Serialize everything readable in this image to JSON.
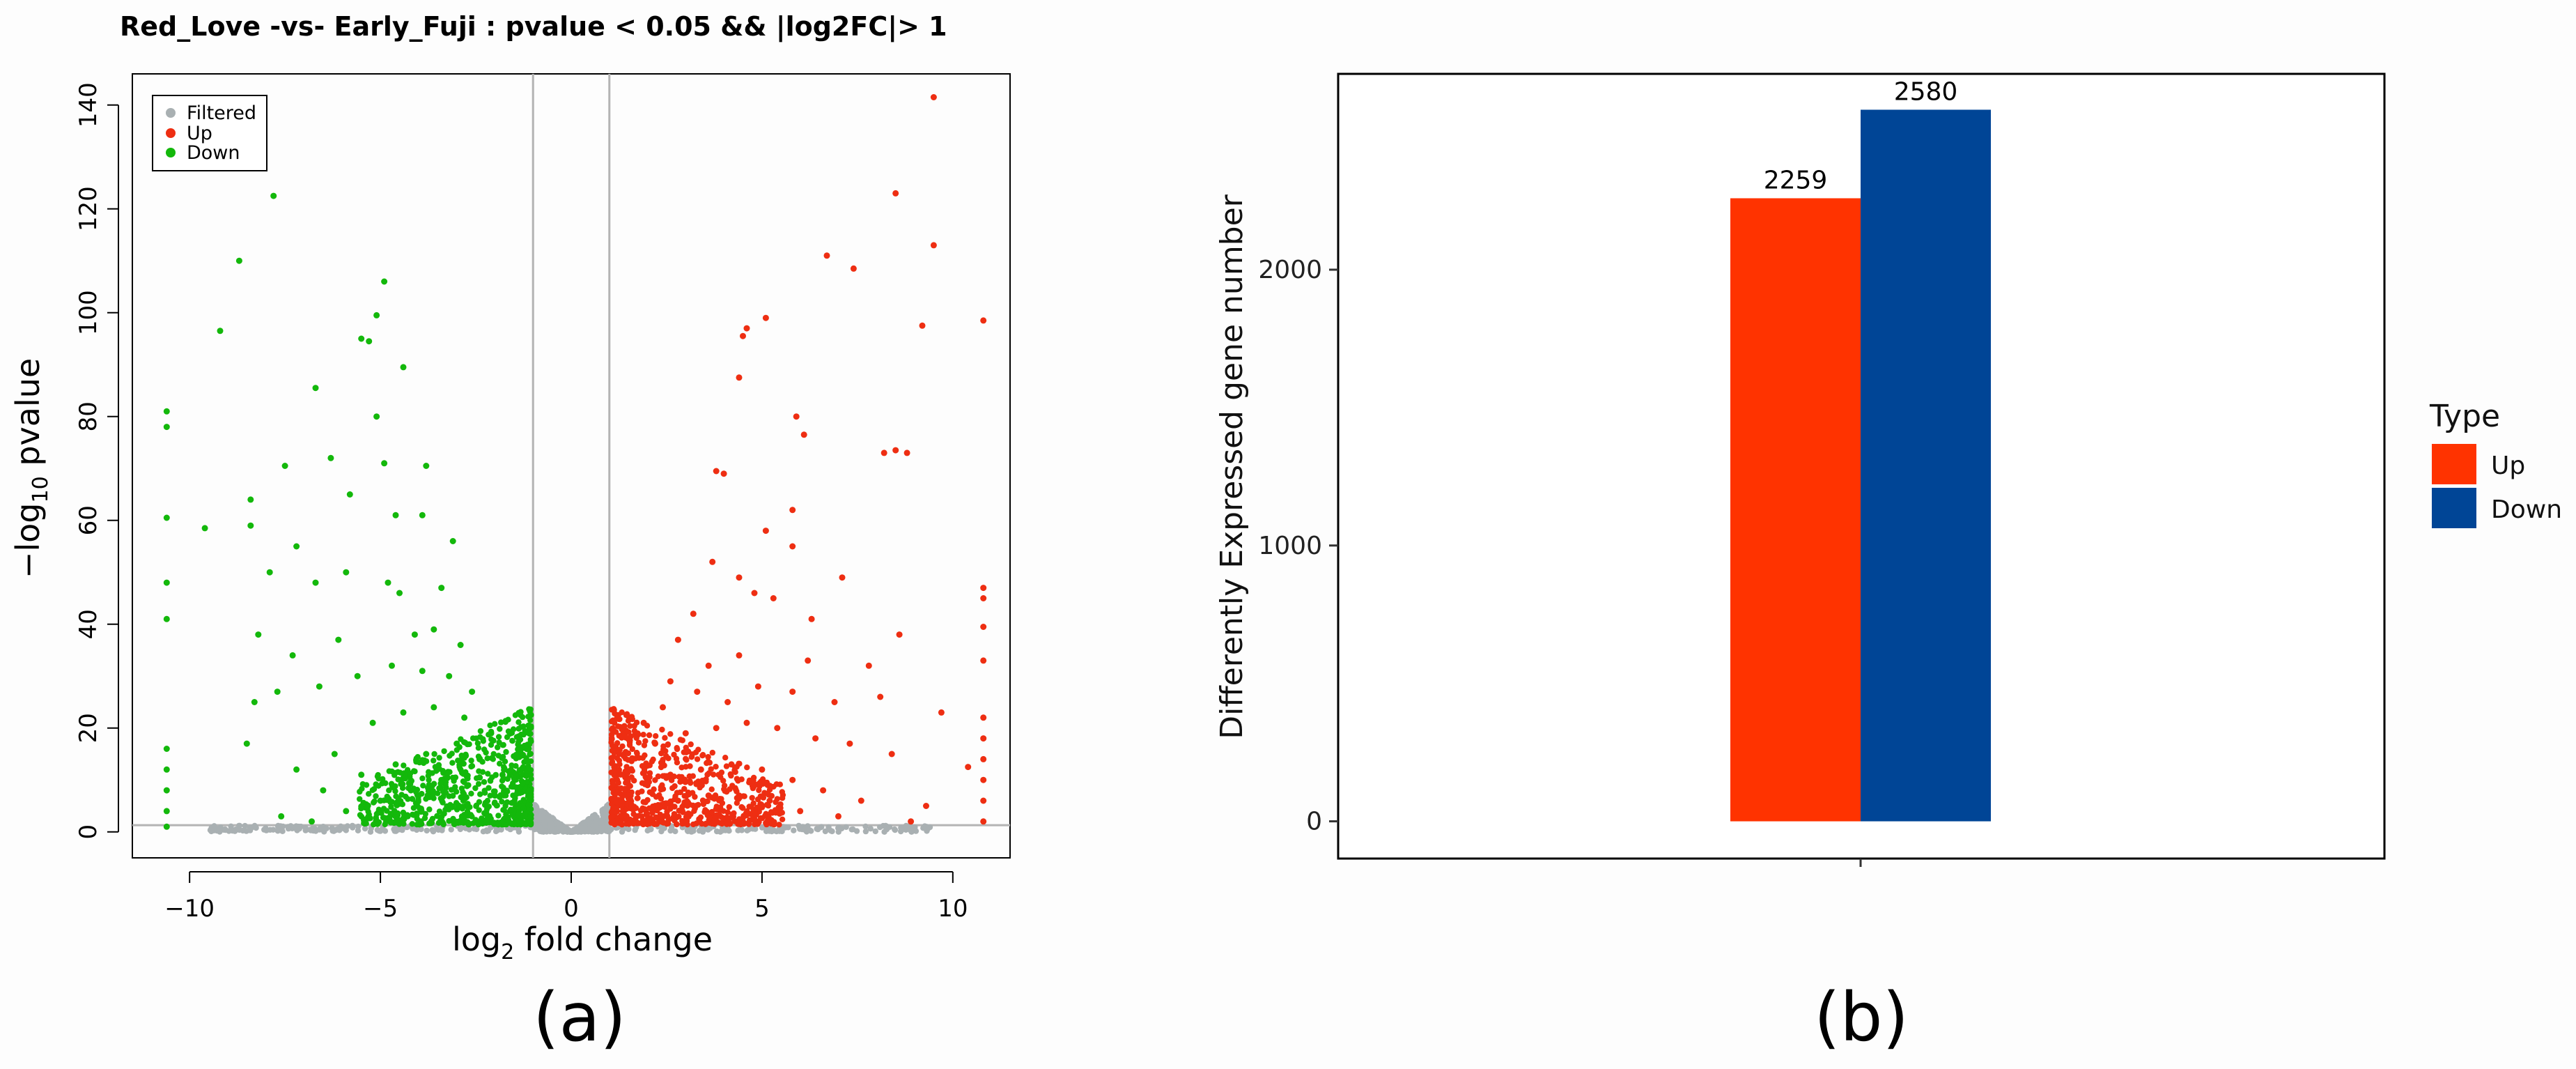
{
  "panels": {
    "a_label": "(a)",
    "b_label": "(b)"
  },
  "chart_data": [
    {
      "type": "scatter",
      "title": "Red_Love -vs- Early_Fuji : pvalue < 0.05 && |log2FC|> 1",
      "xlabel": "log2 fold change",
      "ylabel": "-log10 pvalue",
      "xlim": [
        -11.5,
        11.5
      ],
      "ylim": [
        -5,
        146
      ],
      "x_ticks": [
        -10,
        -5,
        0,
        5,
        10
      ],
      "y_ticks": [
        0,
        20,
        40,
        60,
        80,
        100,
        120,
        140
      ],
      "thresholds": {
        "log2fc": [
          -1,
          1
        ],
        "pvalue_line": 1.3
      },
      "legend": {
        "placement": "top-left",
        "entries": [
          "Filtered",
          "Up",
          "Down"
        ]
      },
      "colors": {
        "Filtered": "#a9b0b2",
        "Up": "#ee2e12",
        "Down": "#13b80b"
      },
      "series": [
        {
          "name": "Down",
          "points": [
            [
              -7.8,
              122.5
            ],
            [
              -8.7,
              110
            ],
            [
              -4.9,
              106
            ],
            [
              -5.1,
              99.5
            ],
            [
              -9.2,
              96.5
            ],
            [
              -5.5,
              95
            ],
            [
              -5.3,
              94.5
            ],
            [
              -4.4,
              89.5
            ],
            [
              -6.7,
              85.5
            ],
            [
              -5.1,
              80
            ],
            [
              -6.3,
              72
            ],
            [
              -4.9,
              71
            ],
            [
              -7.5,
              70.5
            ],
            [
              -3.8,
              70.5
            ],
            [
              -8.4,
              64
            ],
            [
              -5.8,
              65
            ],
            [
              -4.6,
              61
            ],
            [
              -3.9,
              61
            ],
            [
              -9.6,
              58.5
            ],
            [
              -8.4,
              59
            ],
            [
              -7.2,
              55
            ],
            [
              -3.1,
              56
            ],
            [
              -7.9,
              50
            ],
            [
              -6.7,
              48
            ],
            [
              -5.9,
              50
            ],
            [
              -4.8,
              48
            ],
            [
              -4.5,
              46
            ],
            [
              -3.4,
              47
            ],
            [
              -10.6,
              81
            ],
            [
              -10.6,
              78
            ],
            [
              -10.6,
              60.5
            ],
            [
              -10.6,
              48
            ],
            [
              -10.6,
              41
            ],
            [
              -8.2,
              38
            ],
            [
              -7.3,
              34
            ],
            [
              -6.1,
              37
            ],
            [
              -4.1,
              38
            ],
            [
              -3.6,
              39
            ],
            [
              -2.9,
              36
            ],
            [
              -8.3,
              25
            ],
            [
              -7.7,
              27
            ],
            [
              -6.6,
              28
            ],
            [
              -5.6,
              30
            ],
            [
              -4.7,
              32
            ],
            [
              -3.9,
              31
            ],
            [
              -3.2,
              30
            ],
            [
              -2.6,
              27
            ],
            [
              -8.5,
              17
            ],
            [
              -7.2,
              12
            ],
            [
              -6.2,
              15
            ],
            [
              -5.2,
              21
            ],
            [
              -4.4,
              23
            ],
            [
              -3.6,
              24
            ],
            [
              -2.8,
              22
            ],
            [
              -2.1,
              19
            ],
            [
              -7.6,
              3
            ],
            [
              -6.5,
              8
            ],
            [
              -5.5,
              11
            ],
            [
              -4.6,
              13
            ],
            [
              -3.8,
              15
            ],
            [
              -3.0,
              17
            ],
            [
              -2.4,
              14
            ],
            [
              -1.8,
              11
            ],
            [
              -1.4,
              8
            ],
            [
              -1.2,
              5
            ],
            [
              -6.8,
              2
            ],
            [
              -5.9,
              4
            ],
            [
              -5.0,
              6
            ],
            [
              -4.2,
              8
            ],
            [
              -3.4,
              10
            ],
            [
              -2.7,
              9
            ],
            [
              -2.0,
              7
            ],
            [
              -1.6,
              4
            ],
            [
              -1.3,
              2
            ],
            [
              -10.6,
              16
            ],
            [
              -10.6,
              12
            ],
            [
              -10.6,
              8
            ],
            [
              -10.6,
              4
            ],
            [
              -10.6,
              1
            ]
          ]
        },
        {
          "name": "Up",
          "points": [
            [
              9.5,
              141.5
            ],
            [
              8.5,
              123
            ],
            [
              9.5,
              113
            ],
            [
              6.7,
              111
            ],
            [
              7.4,
              108.5
            ],
            [
              10.8,
              98.5
            ],
            [
              5.1,
              99
            ],
            [
              4.6,
              97
            ],
            [
              9.2,
              97.5
            ],
            [
              4.5,
              95.5
            ],
            [
              4.4,
              87.5
            ],
            [
              5.9,
              80
            ],
            [
              6.1,
              76.5
            ],
            [
              8.5,
              73.5
            ],
            [
              8.2,
              73
            ],
            [
              8.8,
              73
            ],
            [
              4.0,
              69
            ],
            [
              3.8,
              69.5
            ],
            [
              5.8,
              62
            ],
            [
              5.1,
              58
            ],
            [
              5.8,
              55
            ],
            [
              7.1,
              49
            ],
            [
              3.7,
              52
            ],
            [
              4.4,
              49
            ],
            [
              4.8,
              46
            ],
            [
              5.3,
              45
            ],
            [
              10.8,
              47
            ],
            [
              10.8,
              45
            ],
            [
              10.8,
              39.5
            ],
            [
              10.8,
              33
            ],
            [
              8.6,
              38
            ],
            [
              6.3,
              41
            ],
            [
              3.2,
              42
            ],
            [
              2.8,
              37
            ],
            [
              7.8,
              32
            ],
            [
              6.2,
              33
            ],
            [
              4.4,
              34
            ],
            [
              3.6,
              32
            ],
            [
              2.6,
              29
            ],
            [
              9.7,
              23
            ],
            [
              8.1,
              26
            ],
            [
              6.9,
              25
            ],
            [
              5.8,
              27
            ],
            [
              4.9,
              28
            ],
            [
              4.1,
              25
            ],
            [
              3.3,
              27
            ],
            [
              2.4,
              24
            ],
            [
              1.9,
              21
            ],
            [
              10.4,
              12.5
            ],
            [
              8.4,
              15
            ],
            [
              7.3,
              17
            ],
            [
              6.4,
              18
            ],
            [
              5.4,
              20
            ],
            [
              4.6,
              21
            ],
            [
              3.8,
              20
            ],
            [
              3.0,
              19
            ],
            [
              2.2,
              17
            ],
            [
              1.6,
              14
            ],
            [
              1.2,
              10
            ],
            [
              9.3,
              5
            ],
            [
              8.9,
              2
            ],
            [
              7.6,
              6
            ],
            [
              6.6,
              8
            ],
            [
              5.8,
              10
            ],
            [
              5.0,
              12
            ],
            [
              4.2,
              13
            ],
            [
              3.4,
              12
            ],
            [
              2.6,
              11
            ],
            [
              2.0,
              9
            ],
            [
              1.5,
              7
            ],
            [
              1.2,
              4
            ],
            [
              7.0,
              3
            ],
            [
              6.0,
              4
            ],
            [
              5.2,
              6
            ],
            [
              4.4,
              7
            ],
            [
              3.6,
              7
            ],
            [
              2.8,
              6
            ],
            [
              2.2,
              5
            ],
            [
              1.7,
              3
            ],
            [
              1.3,
              2
            ],
            [
              10.8,
              22
            ],
            [
              10.8,
              18
            ],
            [
              10.8,
              14
            ],
            [
              10.8,
              10
            ],
            [
              10.8,
              6
            ],
            [
              10.8,
              2
            ]
          ]
        }
      ]
    },
    {
      "type": "bar",
      "categories": [
        ""
      ],
      "series": [
        {
          "name": "Up",
          "values": [
            2259
          ]
        },
        {
          "name": "Down",
          "values": [
            2580
          ]
        }
      ],
      "data_labels": [
        "2259",
        "2580"
      ],
      "ylabel": "Differently Expressed gene number",
      "ylim": [
        -135,
        2710
      ],
      "y_ticks": [
        0,
        1000,
        2000
      ],
      "legend": {
        "title": "Type",
        "entries": [
          "Up",
          "Down"
        ],
        "placement": "right"
      },
      "colors": {
        "Up": "#ff3300",
        "Down": "#004596"
      }
    }
  ]
}
